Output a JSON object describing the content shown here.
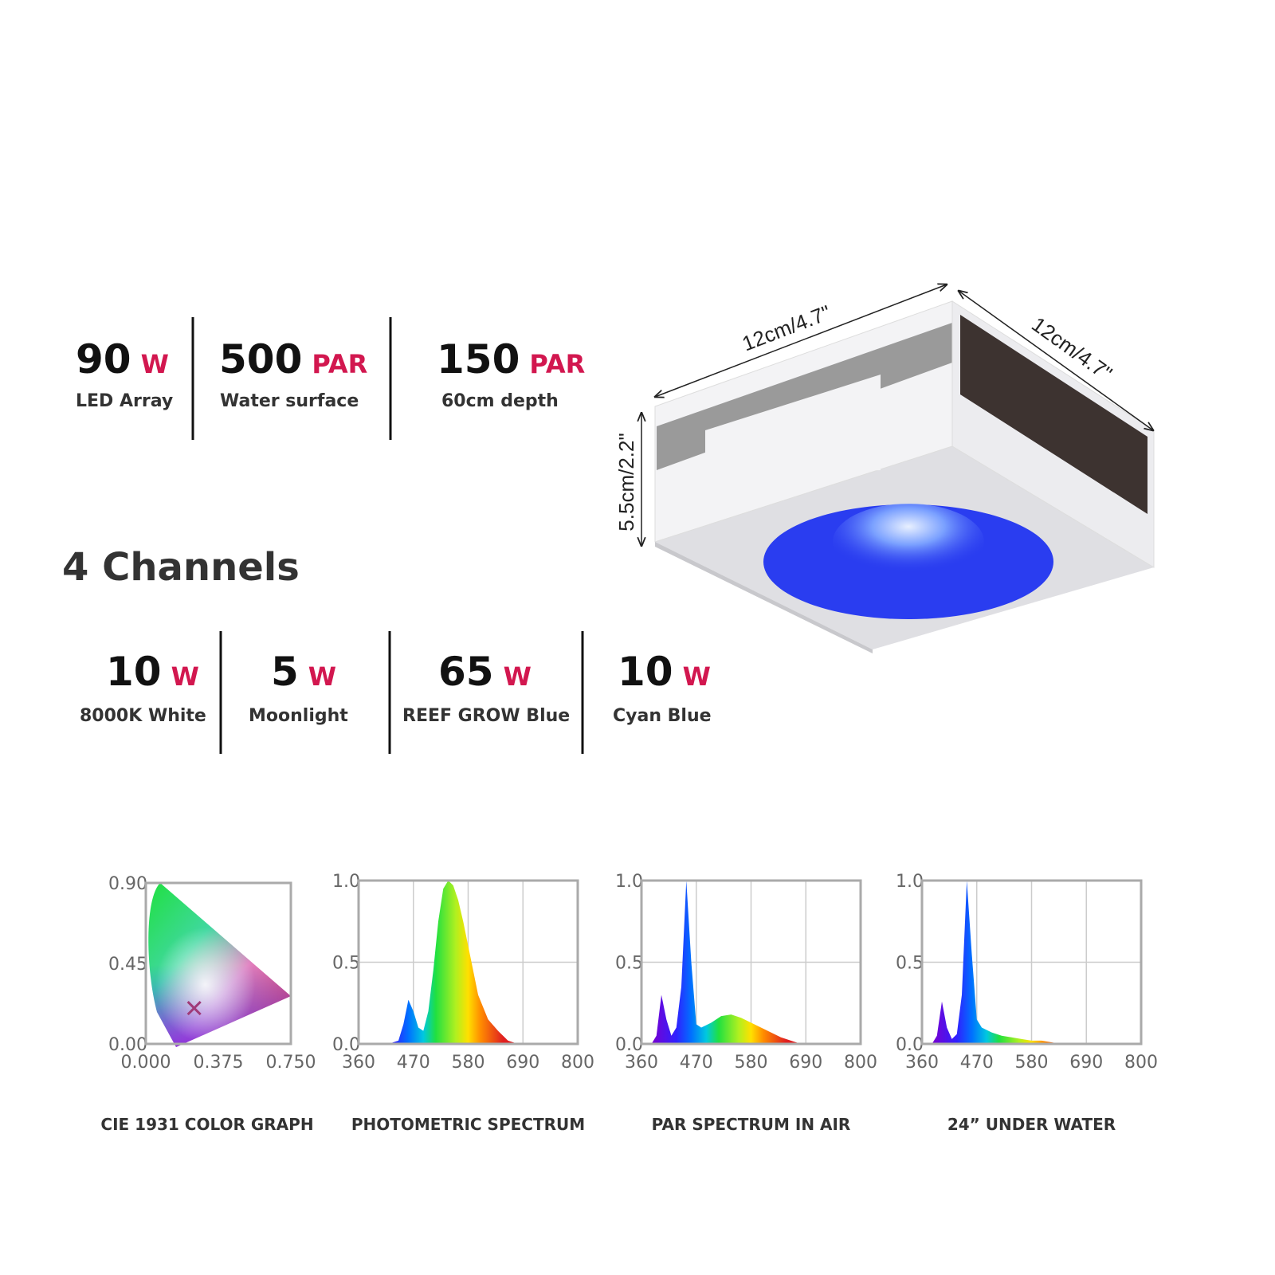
{
  "specs": [
    {
      "value": "90",
      "unit": "W",
      "label": "LED Array"
    },
    {
      "value": "500",
      "unit": "PAR",
      "label": "Water surface"
    },
    {
      "value": "150",
      "unit": "PAR",
      "label": "60cm depth"
    }
  ],
  "channels_title": "4 Channels",
  "channels": [
    {
      "value": "10",
      "unit": "W",
      "label": "8000K White"
    },
    {
      "value": "5",
      "unit": "W",
      "label": "Moonlight"
    },
    {
      "value": "65",
      "unit": "W",
      "label": "REEF GROW Blue"
    },
    {
      "value": "10",
      "unit": "W",
      "label": "Cyan Blue"
    }
  ],
  "dimensions": {
    "length": "12cm/4.7\"",
    "width": "12cm/4.7\"",
    "height": "5.5cm/2.2\""
  },
  "chart_data": [
    {
      "type": "scatter",
      "title": "CIE 1931 COLOR GRAPH",
      "x": [
        0.25
      ],
      "values": [
        0.2
      ],
      "color": "#a03a78",
      "xlim": [
        0,
        0.75
      ],
      "ylim": [
        0,
        0.9
      ],
      "xticks": [
        {
          "value": 0,
          "label": "0.000"
        },
        {
          "value": 0.375,
          "label": "0.375"
        },
        {
          "value": 0.75,
          "label": "0.750"
        }
      ],
      "yticks": [
        {
          "value": 0,
          "label": "0.00"
        },
        {
          "value": 0.45,
          "label": "0.45"
        },
        {
          "value": 0.9,
          "label": "0.90"
        }
      ],
      "grid": false
    },
    {
      "type": "area",
      "title": "PHOTOMETRIC SPECTRUM",
      "x": [
        400,
        420,
        440,
        450,
        460,
        470,
        480,
        490,
        500,
        510,
        520,
        530,
        540,
        550,
        560,
        570,
        580,
        590,
        600,
        620,
        640,
        660,
        680,
        700
      ],
      "values": [
        0,
        0,
        0.02,
        0.12,
        0.27,
        0.2,
        0.1,
        0.08,
        0.2,
        0.45,
        0.75,
        0.95,
        1.0,
        0.97,
        0.88,
        0.75,
        0.6,
        0.45,
        0.3,
        0.15,
        0.08,
        0.02,
        0,
        0
      ],
      "xlim": [
        360,
        800
      ],
      "ylim": [
        0,
        1
      ],
      "xticks": [
        360,
        470,
        580,
        690,
        800
      ],
      "yticks": [
        {
          "value": 0,
          "label": "0.0"
        },
        {
          "value": 0.5,
          "label": "0.5"
        },
        {
          "value": 1,
          "label": "1.0"
        }
      ],
      "grid": true
    },
    {
      "type": "area",
      "title": "PAR SPECTRUM IN AIR",
      "x": [
        380,
        390,
        400,
        410,
        420,
        430,
        440,
        450,
        460,
        470,
        480,
        500,
        520,
        540,
        560,
        580,
        600,
        620,
        640,
        660,
        680,
        700
      ],
      "values": [
        0,
        0.05,
        0.3,
        0.15,
        0.05,
        0.1,
        0.35,
        1.0,
        0.5,
        0.12,
        0.1,
        0.13,
        0.17,
        0.18,
        0.16,
        0.13,
        0.1,
        0.07,
        0.04,
        0.02,
        0,
        0
      ],
      "xlim": [
        360,
        800
      ],
      "ylim": [
        0,
        1
      ],
      "xticks": [
        360,
        470,
        580,
        690,
        800
      ],
      "yticks": [
        {
          "value": 0,
          "label": "0.0"
        },
        {
          "value": 0.5,
          "label": "0.5"
        },
        {
          "value": 1,
          "label": "1.0"
        }
      ],
      "grid": true
    },
    {
      "type": "area",
      "title": "24” UNDER WATER",
      "x": [
        380,
        390,
        400,
        410,
        420,
        430,
        440,
        450,
        460,
        470,
        480,
        500,
        520,
        540,
        560,
        580,
        600,
        620,
        640,
        660
      ],
      "values": [
        0,
        0.05,
        0.26,
        0.1,
        0.03,
        0.06,
        0.3,
        1.0,
        0.55,
        0.15,
        0.1,
        0.07,
        0.05,
        0.04,
        0.03,
        0.02,
        0.02,
        0.01,
        0,
        0
      ],
      "xlim": [
        360,
        800
      ],
      "ylim": [
        0,
        1
      ],
      "xticks": [
        360,
        470,
        580,
        690,
        800
      ],
      "yticks": [
        {
          "value": 0,
          "label": "0.0"
        },
        {
          "value": 0.5,
          "label": "0.5"
        },
        {
          "value": 1,
          "label": "1.0"
        }
      ],
      "grid": true
    }
  ]
}
